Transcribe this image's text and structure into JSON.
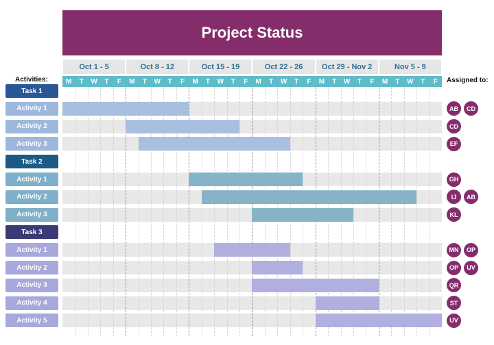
{
  "title": "Project Status",
  "activities_label": "Activities:",
  "assigned_label": "Assigned to:",
  "weeks": [
    "Oct 1 - 5",
    "Oct 8 - 12",
    "Oct 15 - 19",
    "Oct 22 - 26",
    "Oct 29 - Nov 2",
    "Nov 5 - 9"
  ],
  "weekdays": [
    "M",
    "T",
    "W",
    "T",
    "F"
  ],
  "colors": {
    "header": "#852d6a",
    "day_header": "#5fbcc9",
    "week_header_text": "#2f6f95",
    "badge": "#852d6a",
    "task1": "#2a5796",
    "task1_activity": "#9eb8dd",
    "task1_bar": "#a9bfe0",
    "task2": "#1b5a85",
    "task2_activity": "#7fb0c9",
    "task2_bar": "#87b3c9",
    "task3": "#3c3a75",
    "task3_activity": "#a7a8dc",
    "task3_bar": "#b0afdf"
  },
  "rows": [
    {
      "type": "task",
      "label": "Task 1",
      "group": "task1"
    },
    {
      "type": "activity",
      "label": "Activity 1",
      "group": "task1",
      "start": 0,
      "end": 10,
      "assigned": [
        "AB",
        "CD"
      ]
    },
    {
      "type": "activity",
      "label": "Activity 2",
      "group": "task1",
      "start": 5,
      "end": 14,
      "assigned": [
        "CD"
      ]
    },
    {
      "type": "activity",
      "label": "Activity 3",
      "group": "task1",
      "start": 6,
      "end": 18,
      "assigned": [
        "EF"
      ]
    },
    {
      "type": "task",
      "label": "Task 2",
      "group": "task2"
    },
    {
      "type": "activity",
      "label": "Activity 1",
      "group": "task2",
      "start": 10,
      "end": 19,
      "assigned": [
        "GH"
      ]
    },
    {
      "type": "activity",
      "label": "Activity 2",
      "group": "task2",
      "start": 11,
      "end": 28,
      "assigned": [
        "IJ",
        "AB"
      ]
    },
    {
      "type": "activity",
      "label": "Activity 3",
      "group": "task2",
      "start": 15,
      "end": 23,
      "assigned": [
        "KL"
      ]
    },
    {
      "type": "task",
      "label": "Task 3",
      "group": "task3"
    },
    {
      "type": "activity",
      "label": "Activity 1",
      "group": "task3",
      "start": 12,
      "end": 18,
      "assigned": [
        "MN",
        "OP"
      ]
    },
    {
      "type": "activity",
      "label": "Activity 2",
      "group": "task3",
      "start": 15,
      "end": 19,
      "assigned": [
        "OP",
        "UV"
      ]
    },
    {
      "type": "activity",
      "label": "Activity 3",
      "group": "task3",
      "start": 15,
      "end": 25,
      "assigned": [
        "QR"
      ]
    },
    {
      "type": "activity",
      "label": "Activity 4",
      "group": "task3",
      "start": 20,
      "end": 25,
      "assigned": [
        "ST"
      ]
    },
    {
      "type": "activity",
      "label": "Activity 5",
      "group": "task3",
      "start": 20,
      "end": 30,
      "assigned": [
        "UV"
      ]
    }
  ]
}
